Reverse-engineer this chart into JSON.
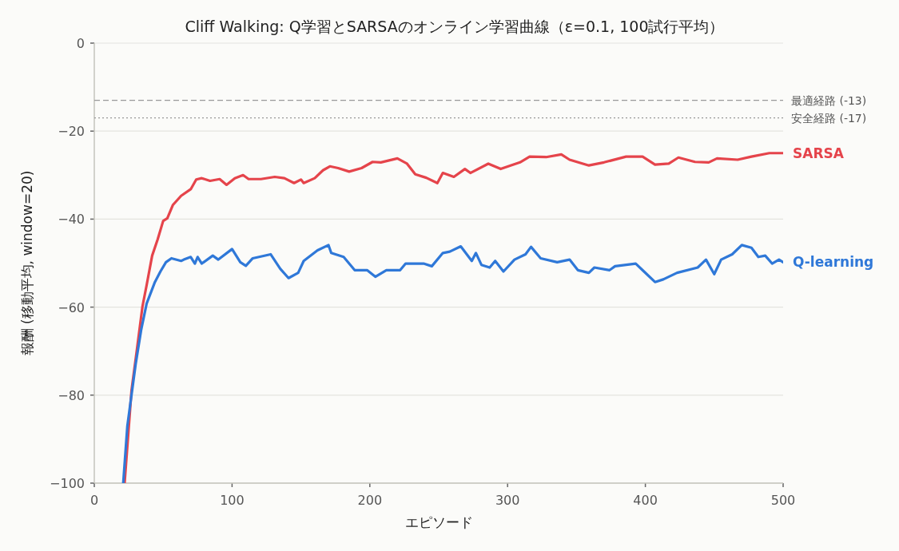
{
  "chart_data": {
    "type": "line",
    "title": "Cliff Walking: Q学習とSARSAのオンライン学習曲線（ε=0.1, 100試行平均）",
    "xlabel": "エピソード",
    "ylabel": "報酬 (移動平均, window=20)",
    "xlim": [
      0,
      500
    ],
    "ylim": [
      -100,
      0
    ],
    "xticks": [
      0,
      100,
      200,
      300,
      400,
      500
    ],
    "yticks": [
      -100,
      -80,
      -60,
      -40,
      -20,
      0
    ],
    "grid": "y",
    "line_style": "solid",
    "ref_lines": [
      {
        "axis": "y",
        "value": -13,
        "label": "最適経路 (-13)",
        "color": "#999999",
        "line_style": "dashed"
      },
      {
        "axis": "y",
        "value": -17,
        "label": "安全経路 (-17)",
        "color": "#999999",
        "line_style": "dotted"
      }
    ],
    "series": [
      {
        "name": "SARSA",
        "color": "#e5444b",
        "x": [
          22,
          27,
          31,
          35,
          38,
          42,
          46,
          50,
          53,
          57,
          63,
          70,
          74,
          78,
          84,
          91,
          96,
          102,
          108,
          112,
          121,
          131,
          138,
          145,
          150,
          152,
          160,
          166,
          171,
          177,
          185,
          194,
          202,
          208,
          220,
          227,
          233,
          241,
          249,
          253,
          261,
          269,
          273,
          286,
          295,
          309,
          316,
          328,
          339,
          345,
          359,
          370,
          386,
          398,
          407,
          417,
          424,
          436,
          446,
          452,
          467,
          477,
          490,
          500
        ],
        "values": [
          -100,
          -79,
          -69.5,
          -59.8,
          -55,
          -48.3,
          -44.6,
          -40.4,
          -39.8,
          -36.8,
          -34.7,
          -33.2,
          -31,
          -30.7,
          -31.3,
          -30.9,
          -32.2,
          -30.7,
          -30,
          -30.9,
          -30.9,
          -30.4,
          -30.7,
          -31.8,
          -31,
          -31.8,
          -30.7,
          -28.9,
          -28,
          -28.4,
          -29.2,
          -28.4,
          -27,
          -27.1,
          -26.2,
          -27.4,
          -29.8,
          -30.6,
          -31.8,
          -29.5,
          -30.4,
          -28.6,
          -29.5,
          -27.4,
          -28.6,
          -27.1,
          -25.8,
          -25.9,
          -25.3,
          -26.5,
          -27.8,
          -27.1,
          -25.8,
          -25.8,
          -27.6,
          -27.4,
          -26,
          -27,
          -27.1,
          -26.2,
          -26.5,
          -25.8,
          -25,
          -25
        ]
      },
      {
        "name": "Q-learning",
        "color": "#2f78d8",
        "x": [
          21,
          24,
          30,
          34,
          38,
          44,
          48,
          52,
          56,
          63,
          65,
          70,
          73,
          75,
          78,
          86,
          90,
          100,
          106,
          110,
          115,
          128,
          135,
          141,
          148,
          152,
          162,
          170,
          172,
          181,
          189,
          198,
          204,
          212,
          222,
          226,
          239,
          245,
          253,
          258,
          266,
          274,
          277,
          281,
          287,
          291,
          297,
          305,
          313,
          317,
          324,
          336,
          345,
          351,
          359,
          363,
          374,
          378,
          393,
          399,
          407,
          413,
          423,
          438,
          444,
          450,
          455,
          463,
          470,
          477,
          482,
          487,
          492,
          497,
          500
        ],
        "values": [
          -100,
          -87,
          -73,
          -65.2,
          -59.2,
          -54.3,
          -51.9,
          -49.8,
          -48.9,
          -49.5,
          -49.2,
          -48.6,
          -50.1,
          -48.6,
          -50.1,
          -48.3,
          -49.2,
          -46.8,
          -49.8,
          -50.6,
          -48.9,
          -48,
          -51.3,
          -53.4,
          -52.2,
          -49.5,
          -47.1,
          -45.9,
          -47.7,
          -48.6,
          -51.6,
          -51.6,
          -53.1,
          -51.6,
          -51.6,
          -50.1,
          -50.1,
          -50.7,
          -47.7,
          -47.4,
          -46.2,
          -49.5,
          -47.7,
          -50.4,
          -51,
          -49.5,
          -51.9,
          -49.2,
          -48,
          -46.3,
          -48.9,
          -49.8,
          -49.2,
          -51.6,
          -52.2,
          -51,
          -51.6,
          -50.7,
          -50.1,
          -51.9,
          -54.3,
          -53.7,
          -52.2,
          -51,
          -49.2,
          -52.5,
          -49.2,
          -48,
          -45.9,
          -46.5,
          -48.6,
          -48.3,
          -50.1,
          -49.2,
          -49.8
        ]
      }
    ]
  }
}
